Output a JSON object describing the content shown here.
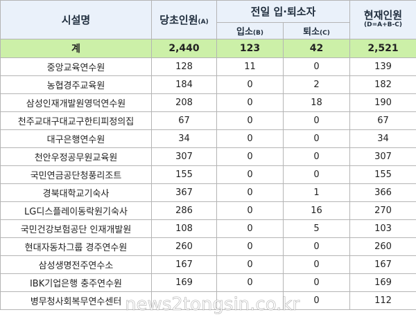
{
  "header": {
    "facility": "시설명",
    "initial": "당초인원",
    "initial_sub": "(A)",
    "transfer_group": "전일 입·퇴소자",
    "admit": "입소",
    "admit_sub": "(B)",
    "leave": "퇴소",
    "leave_sub": "(C)",
    "current": "현재인원",
    "current_formula": "(D=A+B-C)"
  },
  "total": {
    "name": "계",
    "initial": "2,440",
    "admit": "123",
    "leave": "42",
    "current": "2,521"
  },
  "rows": [
    {
      "name": "중앙교육연수원",
      "initial": "128",
      "admit": "11",
      "leave": "0",
      "current": "139"
    },
    {
      "name": "농협경주교육원",
      "initial": "184",
      "admit": "0",
      "leave": "2",
      "current": "182"
    },
    {
      "name": "삼성인재개발원영덕연수원",
      "initial": "208",
      "admit": "0",
      "leave": "18",
      "current": "190"
    },
    {
      "name": "천주교대구대교구한티피정의집",
      "initial": "67",
      "admit": "0",
      "leave": "0",
      "current": "67"
    },
    {
      "name": "대구은행연수원",
      "initial": "34",
      "admit": "0",
      "leave": "0",
      "current": "34"
    },
    {
      "name": "천안우정공무원교육원",
      "initial": "307",
      "admit": "0",
      "leave": "0",
      "current": "307"
    },
    {
      "name": "국민연금공단청풍리조트",
      "initial": "155",
      "admit": "0",
      "leave": "0",
      "current": "155"
    },
    {
      "name": "경북대학교기숙사",
      "initial": "367",
      "admit": "0",
      "leave": "1",
      "current": "366"
    },
    {
      "name": "LG디스플레이동락원기숙사",
      "initial": "286",
      "admit": "0",
      "leave": "16",
      "current": "270"
    },
    {
      "name": "국민건강보험공단 인재개발원",
      "initial": "108",
      "admit": "0",
      "leave": "5",
      "current": "103"
    },
    {
      "name": "현대자동차그룹 경주연수원",
      "initial": "260",
      "admit": "0",
      "leave": "0",
      "current": "260"
    },
    {
      "name": "삼성생명전주연수소",
      "initial": "167",
      "admit": "0",
      "leave": "0",
      "current": "167"
    },
    {
      "name": "IBK기업은행 충주연수원",
      "initial": "169",
      "admit": "0",
      "leave": "0",
      "current": "169"
    },
    {
      "name": "병무청사회복무연수센터",
      "initial": "",
      "admit": "",
      "leave": "0",
      "current": "112"
    }
  ],
  "watermark": "news2tongsin.co.kr"
}
